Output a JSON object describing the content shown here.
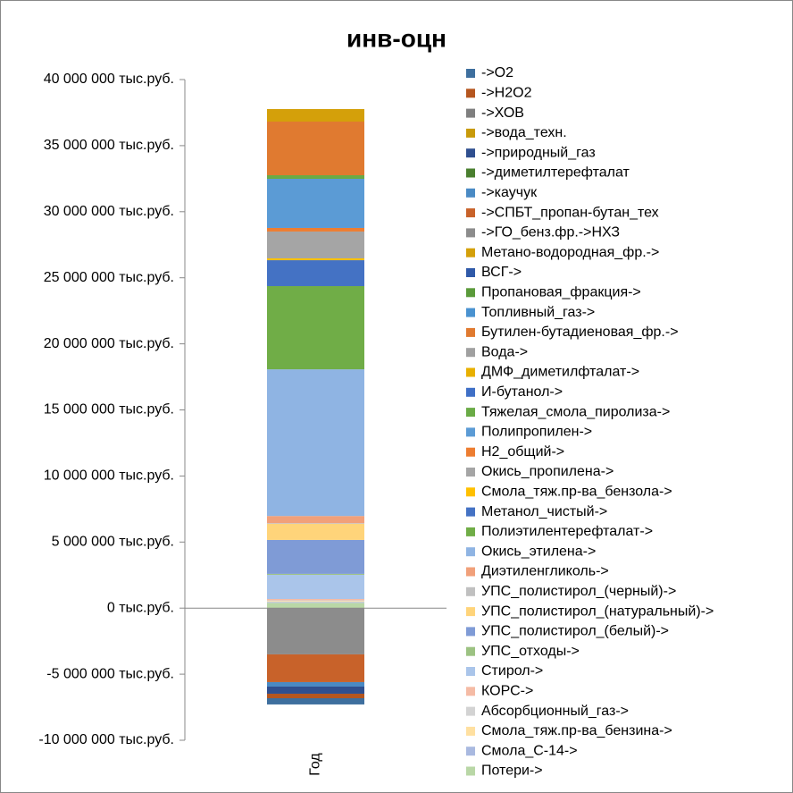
{
  "chart_data": {
    "type": "stacked_bar",
    "title": "инв-оцн",
    "categories": [
      "Год"
    ],
    "ylim": [
      -10000000,
      40000000
    ],
    "yticks": [
      {
        "value": -10000000,
        "label": "-10 000 000 тыс.руб."
      },
      {
        "value": -5000000,
        "label": "-5 000 000 тыс.руб."
      },
      {
        "value": 0,
        "label": "0 тыс.руб."
      },
      {
        "value": 5000000,
        "label": "5 000 000 тыс.руб."
      },
      {
        "value": 10000000,
        "label": "10 000 000 тыс.руб."
      },
      {
        "value": 15000000,
        "label": "15 000 000 тыс.руб."
      },
      {
        "value": 20000000,
        "label": "20 000 000 тыс.руб."
      },
      {
        "value": 25000000,
        "label": "25 000 000 тыс.руб."
      },
      {
        "value": 30000000,
        "label": "30 000 000 тыс.руб."
      },
      {
        "value": 35000000,
        "label": "35 000 000 тыс.руб."
      },
      {
        "value": 40000000,
        "label": "40 000 000 тыс.руб."
      }
    ],
    "legend": "right",
    "series": [
      {
        "name": "->O2",
        "color": "#3e6f9e",
        "values": [
          -470000
        ]
      },
      {
        "name": "->H2O2",
        "color": "#b5561f",
        "values": [
          -340000
        ]
      },
      {
        "name": "->ХОВ",
        "color": "#7f7f7f",
        "values": [
          0
        ]
      },
      {
        "name": "->вода_техн.",
        "color": "#c89a0a",
        "values": [
          0
        ]
      },
      {
        "name": "->природный_газ",
        "color": "#2f4f8f",
        "values": [
          -540000
        ]
      },
      {
        "name": "->диметилтерефталат",
        "color": "#4a7f2f",
        "values": [
          0
        ]
      },
      {
        "name": "->каучук",
        "color": "#4a8ac4",
        "values": [
          -340000
        ]
      },
      {
        "name": "->СПБТ_пропан-бутан_тех",
        "color": "#c8622a",
        "values": [
          -2100000
        ]
      },
      {
        "name": "->ГО_бенз.фр.->НХЗ",
        "color": "#8c8c8c",
        "values": [
          -3500000
        ]
      },
      {
        "name": "Метано-водородная_фр.->",
        "color": "#d4a00a",
        "values": [
          950000
        ]
      },
      {
        "name": "ВСГ->",
        "color": "#2f59a8",
        "values": [
          0
        ]
      },
      {
        "name": "Пропановая_фракция->",
        "color": "#5a9a3a",
        "values": [
          0
        ]
      },
      {
        "name": "Топливный_газ->",
        "color": "#4a92d0",
        "values": [
          0
        ]
      },
      {
        "name": "Бутилен-бутадиеновая_фр.->",
        "color": "#e07a30",
        "values": [
          4060000
        ]
      },
      {
        "name": "Вода->",
        "color": "#a0a0a0",
        "values": [
          0
        ]
      },
      {
        "name": "ДМФ_диметилфталат->",
        "color": "#e8b000",
        "values": [
          0
        ]
      },
      {
        "name": "И-бутанол->",
        "color": "#3f6fc6",
        "values": [
          0
        ]
      },
      {
        "name": "Тяжелая_смола_пиролиза->",
        "color": "#6aab46",
        "values": [
          270000
        ]
      },
      {
        "name": "Полипропилен->",
        "color": "#5b9bd5",
        "values": [
          3720000
        ]
      },
      {
        "name": "Н2_общий->",
        "color": "#ed7d31",
        "values": [
          270000
        ]
      },
      {
        "name": "Окись_пропилена->",
        "color": "#a5a5a5",
        "values": [
          2030000
        ]
      },
      {
        "name": "Смола_тяж.пр-ва_бензола->",
        "color": "#ffc000",
        "values": [
          140000
        ]
      },
      {
        "name": "Метанол_чистый->",
        "color": "#4472c4",
        "values": [
          1960000
        ]
      },
      {
        "name": "Полиэтилентерефталат->",
        "color": "#70ad47",
        "values": [
          6300000
        ]
      },
      {
        "name": "Окись_этилена->",
        "color": "#8fb4e3",
        "values": [
          11100000
        ]
      },
      {
        "name": "Диэтиленгликоль->",
        "color": "#f1a07a",
        "values": [
          540000
        ]
      },
      {
        "name": "УПС_полистирол_(черный)->",
        "color": "#c0c0c0",
        "values": [
          50000
        ]
      },
      {
        "name": "УПС_полистирол_(натуральный)->",
        "color": "#ffd47a",
        "values": [
          1220000
        ]
      },
      {
        "name": "УПС_полистирол_(белый)->",
        "color": "#7f9bd6",
        "values": [
          2570000
        ]
      },
      {
        "name": "УПС_отходы->",
        "color": "#9cc282",
        "values": [
          70000
        ]
      },
      {
        "name": "Стирол->",
        "color": "#aac5ea",
        "values": [
          1830000
        ]
      },
      {
        "name": "КОРС->",
        "color": "#f5bba5",
        "values": [
          100000
        ]
      },
      {
        "name": "Абсорбционный_газ->",
        "color": "#d3d3d3",
        "values": [
          50000
        ]
      },
      {
        "name": "Смола_тяж.пр-ва_бензина->",
        "color": "#ffe0a0",
        "values": [
          70000
        ]
      },
      {
        "name": "Смола_С-14->",
        "color": "#a9b9e0",
        "values": [
          70000
        ]
      },
      {
        "name": "Потери->",
        "color": "#b9d7a6",
        "values": [
          400000
        ]
      }
    ]
  }
}
